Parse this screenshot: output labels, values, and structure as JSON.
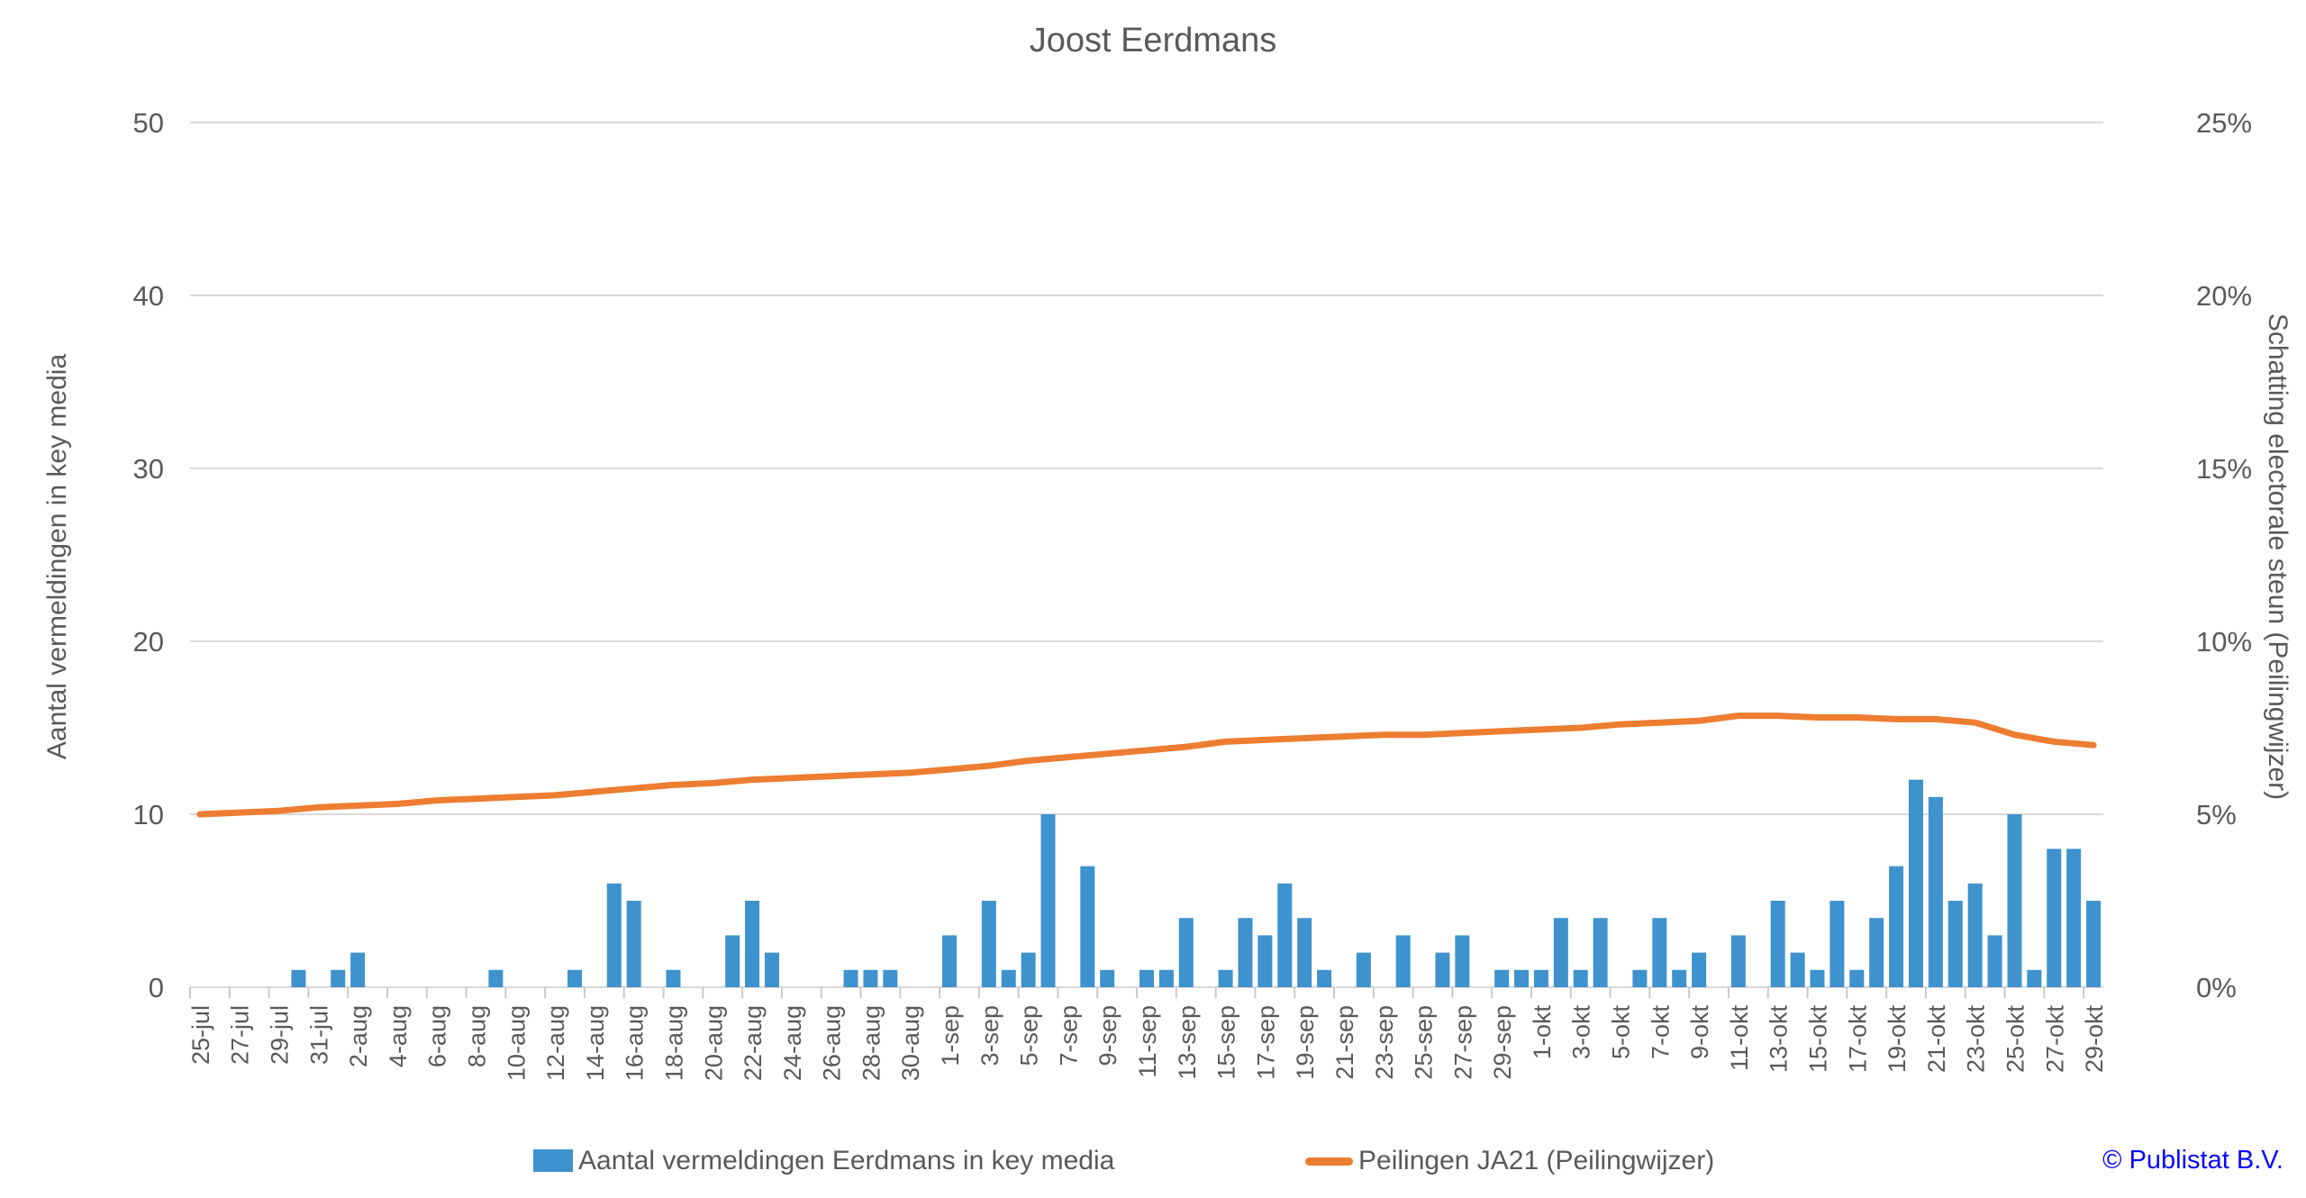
{
  "title": "Joost Eerdmans",
  "left_axis": {
    "title": "Aantal vermeldingen in key media",
    "ticks": [
      "0",
      "10",
      "20",
      "30",
      "40",
      "50"
    ],
    "ylim": [
      0,
      50
    ]
  },
  "right_axis": {
    "title": "Schatting electorale steun (Peilingwijzer)",
    "ticks": [
      "0%",
      "5%",
      "10%",
      "15%",
      "20%",
      "25%"
    ],
    "ylim_pct": [
      0,
      25
    ]
  },
  "legend": {
    "bar_label": "Aantal vermeldingen Eerdmans in key media",
    "line_label": "Peilingen JA21 (Peilingwijzer)"
  },
  "copyright": "© Publistat B.V.",
  "colors": {
    "bar": "#3E92CE",
    "line": "#ED7D31",
    "text": "#595959",
    "gridline": "#D9D9D9",
    "tick": "#C9C9C9",
    "copyright": "#0707FF",
    "background": "#FFFFFF"
  },
  "chart_data": {
    "type": "combo",
    "title": "Joost Eerdmans",
    "x_label_every": 2,
    "grid": "horizontal",
    "legend_position": "bottom",
    "categories": [
      "25-jul",
      "26-jul",
      "27-jul",
      "28-jul",
      "29-jul",
      "30-jul",
      "31-jul",
      "1-aug",
      "2-aug",
      "3-aug",
      "4-aug",
      "5-aug",
      "6-aug",
      "7-aug",
      "8-aug",
      "9-aug",
      "10-aug",
      "11-aug",
      "12-aug",
      "13-aug",
      "14-aug",
      "15-aug",
      "16-aug",
      "17-aug",
      "18-aug",
      "19-aug",
      "20-aug",
      "21-aug",
      "22-aug",
      "23-aug",
      "24-aug",
      "25-aug",
      "26-aug",
      "27-aug",
      "28-aug",
      "29-aug",
      "30-aug",
      "31-aug",
      "1-sep",
      "2-sep",
      "3-sep",
      "4-sep",
      "5-sep",
      "6-sep",
      "7-sep",
      "8-sep",
      "9-sep",
      "10-sep",
      "11-sep",
      "12-sep",
      "13-sep",
      "14-sep",
      "15-sep",
      "16-sep",
      "17-sep",
      "18-sep",
      "19-sep",
      "20-sep",
      "21-sep",
      "22-sep",
      "23-sep",
      "24-sep",
      "25-sep",
      "26-sep",
      "27-sep",
      "28-sep",
      "29-sep",
      "30-sep",
      "1-okt",
      "2-okt",
      "3-okt",
      "4-okt",
      "5-okt",
      "6-okt",
      "7-okt",
      "8-okt",
      "9-okt",
      "10-okt",
      "11-okt",
      "12-okt",
      "13-okt",
      "14-okt",
      "15-okt",
      "16-okt",
      "17-okt",
      "18-okt",
      "19-okt",
      "20-okt",
      "21-okt",
      "22-okt",
      "23-okt",
      "24-okt",
      "25-okt",
      "26-okt",
      "27-okt",
      "28-okt",
      "29-okt"
    ],
    "series": [
      {
        "name": "Aantal vermeldingen Eerdmans in key media",
        "type": "bar",
        "axis": "left",
        "color": "#3E92CE",
        "values": [
          0,
          0,
          0,
          0,
          0,
          1,
          0,
          1,
          2,
          0,
          0,
          0,
          0,
          0,
          0,
          1,
          0,
          0,
          0,
          1,
          0,
          6,
          5,
          0,
          1,
          0,
          0,
          3,
          5,
          2,
          0,
          0,
          0,
          1,
          1,
          1,
          0,
          0,
          3,
          0,
          5,
          1,
          2,
          10,
          0,
          7,
          1,
          0,
          1,
          1,
          4,
          0,
          1,
          4,
          3,
          6,
          4,
          1,
          0,
          2,
          0,
          3,
          0,
          2,
          3,
          0,
          1,
          1,
          1,
          4,
          1,
          4,
          0,
          1,
          4,
          1,
          2,
          0,
          3,
          0,
          5,
          2,
          1,
          5,
          1,
          4,
          7,
          12,
          11,
          5,
          6,
          3,
          10,
          1,
          8,
          8,
          5
        ]
      },
      {
        "name": "Peilingen JA21 (Peilingwijzer)",
        "type": "line",
        "axis": "right",
        "color": "#ED7D31",
        "points_pct": [
          [
            0,
            5.0
          ],
          [
            2,
            5.05
          ],
          [
            4,
            5.1
          ],
          [
            6,
            5.2
          ],
          [
            8,
            5.25
          ],
          [
            10,
            5.3
          ],
          [
            12,
            5.4
          ],
          [
            14,
            5.45
          ],
          [
            16,
            5.5
          ],
          [
            18,
            5.55
          ],
          [
            20,
            5.65
          ],
          [
            22,
            5.75
          ],
          [
            24,
            5.85
          ],
          [
            26,
            5.9
          ],
          [
            28,
            6.0
          ],
          [
            30,
            6.05
          ],
          [
            32,
            6.1
          ],
          [
            34,
            6.15
          ],
          [
            36,
            6.2
          ],
          [
            38,
            6.3
          ],
          [
            40,
            6.4
          ],
          [
            42,
            6.55
          ],
          [
            44,
            6.65
          ],
          [
            46,
            6.75
          ],
          [
            48,
            6.85
          ],
          [
            50,
            6.95
          ],
          [
            52,
            7.1
          ],
          [
            54,
            7.15
          ],
          [
            56,
            7.2
          ],
          [
            58,
            7.25
          ],
          [
            60,
            7.3
          ],
          [
            62,
            7.3
          ],
          [
            64,
            7.35
          ],
          [
            66,
            7.4
          ],
          [
            68,
            7.45
          ],
          [
            70,
            7.5
          ],
          [
            72,
            7.6
          ],
          [
            74,
            7.65
          ],
          [
            76,
            7.7
          ],
          [
            78,
            7.85
          ],
          [
            80,
            7.85
          ],
          [
            82,
            7.8
          ],
          [
            84,
            7.8
          ],
          [
            86,
            7.75
          ],
          [
            88,
            7.75
          ],
          [
            90,
            7.65
          ],
          [
            92,
            7.3
          ],
          [
            94,
            7.1
          ],
          [
            96,
            7.0
          ]
        ]
      }
    ]
  }
}
